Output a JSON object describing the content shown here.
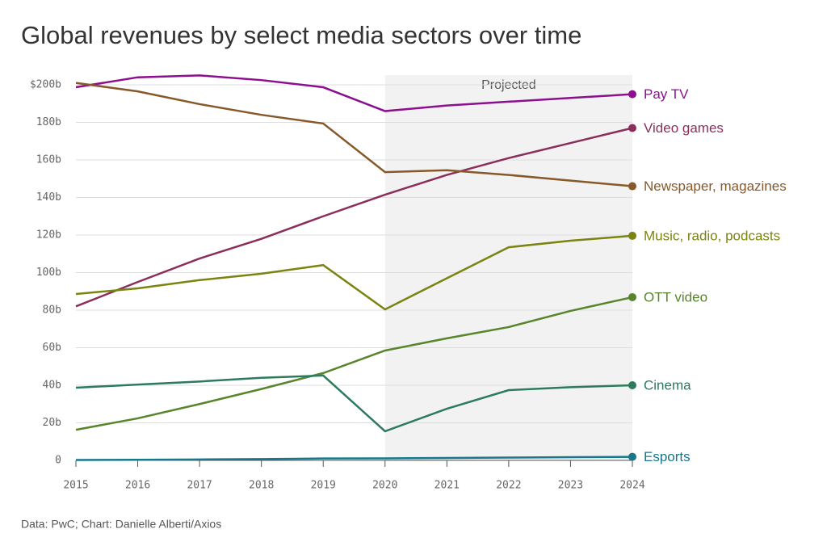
{
  "chart_data": {
    "type": "line",
    "title": "Global revenues by select media sectors over time",
    "source": "Data: PwC; Chart: Danielle Alberti/Axios",
    "projected": {
      "label": "Projected",
      "from": 2020,
      "to": 2024
    },
    "x": [
      2015,
      2016,
      2017,
      2018,
      2019,
      2020,
      2021,
      2022,
      2023,
      2024
    ],
    "xlim": [
      2015,
      2024
    ],
    "xticks": [
      2015,
      2016,
      2017,
      2018,
      2019,
      2020,
      2021,
      2022,
      2023,
      2024
    ],
    "ylim": [
      0,
      200
    ],
    "yticks": [
      0,
      {
        "value": 20,
        "label": "20b"
      },
      {
        "value": 40,
        "label": "40b"
      },
      {
        "value": 60,
        "label": "60b"
      },
      {
        "value": 80,
        "label": "80b"
      },
      {
        "value": 100,
        "label": "100b"
      },
      {
        "value": 120,
        "label": "120b"
      },
      {
        "value": 140,
        "label": "140b"
      },
      {
        "value": 160,
        "label": "160b"
      },
      {
        "value": 180,
        "label": "180b"
      },
      {
        "value": 200,
        "label": "$200b"
      }
    ],
    "grid": true,
    "series": [
      {
        "name": "Pay TV",
        "color": "#8b0f8f",
        "values": [
          198.7,
          204,
          205,
          202.5,
          198.7,
          186,
          189,
          191,
          193,
          195
        ]
      },
      {
        "name": "Video games",
        "color": "#8a2f5c",
        "values": [
          82,
          95,
          107.5,
          118,
          130,
          141.5,
          152,
          161,
          169,
          177
        ]
      },
      {
        "name": "Newspaper, magazines",
        "color": "#87592a",
        "values": [
          201,
          196.5,
          189.7,
          184,
          179.4,
          153.5,
          154.5,
          152,
          149,
          146
        ]
      },
      {
        "name": "Music, radio, podcasts",
        "color": "#7b8410",
        "values": [
          88.6,
          91.6,
          96,
          99.4,
          104,
          80.4,
          97,
          113.5,
          117,
          119.6
        ]
      },
      {
        "name": "OTT video",
        "color": "#58852c",
        "values": [
          16.3,
          22.4,
          30,
          38,
          46.5,
          58.5,
          65,
          71,
          79.6,
          86.9
        ]
      },
      {
        "name": "Cinema",
        "color": "#2d7a5c",
        "values": [
          38.7,
          40.4,
          42,
          44,
          45.2,
          15.5,
          27.5,
          37.4,
          39,
          40
        ]
      },
      {
        "name": "Esports",
        "color": "#18778a",
        "values": [
          0.2,
          0.3,
          0.5,
          0.7,
          1,
          1.1,
          1.3,
          1.5,
          1.7,
          1.9
        ]
      }
    ]
  }
}
